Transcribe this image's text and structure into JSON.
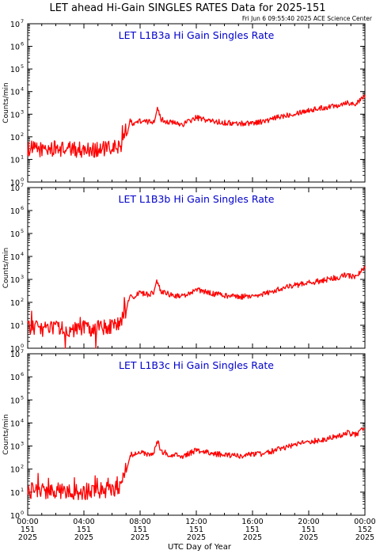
{
  "title": "LET ahead Hi-Gain SINGLES RATES Data for 2025-151",
  "timestamp": "Fri Jun  6 09:55:40 2025 ACE Science Center",
  "xlabel": "UTC Day of Year",
  "ylabel": "Counts/min",
  "x_ticks": [
    {
      "hour": 0,
      "time": "00:00",
      "doy": "151",
      "year": "2025"
    },
    {
      "hour": 4,
      "time": "04:00",
      "doy": "151",
      "year": "2025"
    },
    {
      "hour": 8,
      "time": "08:00",
      "doy": "151",
      "year": "2025"
    },
    {
      "hour": 12,
      "time": "12:00",
      "doy": "151",
      "year": "2025"
    },
    {
      "hour": 16,
      "time": "16:00",
      "doy": "151",
      "year": "2025"
    },
    {
      "hour": 20,
      "time": "20:00",
      "doy": "151",
      "year": "2025"
    },
    {
      "hour": 24,
      "time": "00:00",
      "doy": "152",
      "year": "2025"
    }
  ],
  "y_ticks": [
    {
      "base": "10",
      "exp": "0"
    },
    {
      "base": "10",
      "exp": "1"
    },
    {
      "base": "10",
      "exp": "2"
    },
    {
      "base": "10",
      "exp": "3"
    },
    {
      "base": "10",
      "exp": "4"
    },
    {
      "base": "10",
      "exp": "5"
    },
    {
      "base": "10",
      "exp": "6"
    },
    {
      "base": "10",
      "exp": "7"
    }
  ],
  "colors": {
    "series": "#ff0000",
    "panel_title": "#0000cc",
    "axes": "#000000"
  },
  "chart_data": [
    {
      "type": "line",
      "title": "LET L1B3a Hi Gain Singles Rate",
      "yscale": "log",
      "xlim": [
        0,
        24
      ],
      "ylim": [
        1,
        10000000
      ],
      "x": [
        0,
        1,
        2,
        3,
        4,
        5,
        6,
        6.6,
        7,
        7.3,
        7.5,
        8,
        8.5,
        9,
        9.2,
        9.5,
        10,
        10.5,
        11,
        12,
        13,
        14,
        15,
        16,
        17,
        18,
        19,
        20,
        21,
        22,
        22.8,
        23,
        23.5,
        24
      ],
      "values": [
        30,
        28,
        30,
        28,
        27,
        28,
        30,
        40,
        100,
        500,
        400,
        500,
        450,
        500,
        1800,
        600,
        450,
        400,
        350,
        700,
        500,
        420,
        380,
        420,
        500,
        800,
        1100,
        1500,
        1900,
        2500,
        3500,
        2800,
        3200,
        6500
      ]
    },
    {
      "type": "line",
      "title": "LET L1B3b Hi Gain Singles Rate",
      "yscale": "log",
      "xlim": [
        0,
        24
      ],
      "ylim": [
        1,
        10000000
      ],
      "x": [
        0,
        1,
        2,
        3,
        4,
        5,
        6,
        6.6,
        7,
        7.3,
        7.5,
        8,
        8.5,
        9,
        9.2,
        9.5,
        10,
        10.5,
        11,
        12,
        13,
        14,
        15,
        16,
        17,
        18,
        19,
        20,
        21,
        22,
        22.8,
        23,
        23.5,
        24
      ],
      "values": [
        8,
        7,
        8,
        6,
        7,
        8,
        8,
        15,
        50,
        200,
        180,
        250,
        220,
        250,
        900,
        300,
        230,
        200,
        180,
        350,
        250,
        200,
        170,
        200,
        250,
        400,
        550,
        700,
        900,
        1200,
        1600,
        1300,
        1500,
        3500
      ]
    },
    {
      "type": "line",
      "title": "LET L1B3c Hi Gain Singles Rate",
      "yscale": "log",
      "xlim": [
        0,
        24
      ],
      "ylim": [
        1,
        10000000
      ],
      "x": [
        0,
        1,
        2,
        3,
        4,
        5,
        6,
        6.6,
        7,
        7.3,
        7.5,
        8,
        8.5,
        9,
        9.2,
        9.5,
        10,
        10.5,
        11,
        12,
        13,
        14,
        15,
        16,
        17,
        18,
        19,
        20,
        21,
        22,
        22.8,
        23,
        23.5,
        24
      ],
      "values": [
        12,
        11,
        12,
        11,
        10,
        12,
        12,
        20,
        80,
        450,
        400,
        500,
        450,
        500,
        1800,
        600,
        450,
        400,
        350,
        650,
        500,
        400,
        380,
        420,
        500,
        800,
        1100,
        1500,
        1900,
        2600,
        3800,
        3000,
        3500,
        7000
      ]
    }
  ]
}
